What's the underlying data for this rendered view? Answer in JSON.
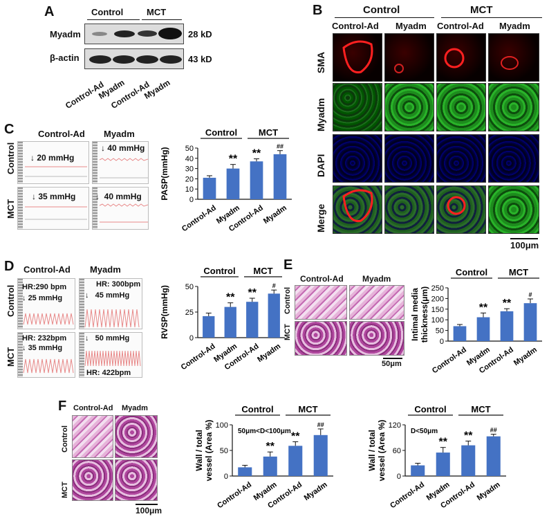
{
  "panels": {
    "A": {
      "letter": "A",
      "groups": [
        "Control",
        "MCT"
      ],
      "rows": [
        "Myadm",
        "β-actin"
      ],
      "sizes": [
        "28 kD",
        "43 kD"
      ],
      "lanes": [
        "Control-Ad",
        "Myadm",
        "Control-Ad",
        "Myadm"
      ]
    },
    "B": {
      "letter": "B",
      "groups": [
        "Control",
        "MCT"
      ],
      "cols": [
        "Control-Ad",
        "Myadm",
        "Control-Ad",
        "Myadm"
      ],
      "rows": [
        "SMA",
        "Myadm",
        "DAPI",
        "Merge"
      ],
      "scale": "100μm"
    },
    "C": {
      "letter": "C",
      "cols": [
        "Control-Ad",
        "Myadm"
      ],
      "rows": [
        "Control",
        "MCT"
      ],
      "traces": [
        "20 mmHg",
        "40 mmHg",
        "35 mmHg",
        "40 mmHg"
      ]
    },
    "D": {
      "letter": "D",
      "cols": [
        "Control-Ad",
        "Myadm"
      ],
      "rows": [
        "Control",
        "MCT"
      ],
      "trace_text": {
        "t1a": "HR:290 bpm",
        "t1b": "25 mmHg",
        "t2a": "HR: 300bpm",
        "t2b": "45 mmHg",
        "t3a": "HR: 232bpm",
        "t3b": "35 mmHg",
        "t4a": "50 mmHg",
        "t4b": "HR: 422bpm"
      }
    },
    "E": {
      "letter": "E",
      "cols": [
        "Control-Ad",
        "Myadm"
      ],
      "rows": [
        "Control",
        "MCT"
      ],
      "scale": "50μm"
    },
    "F": {
      "letter": "F",
      "cols": [
        "Control-Ad",
        "Myadm"
      ],
      "rows": [
        "Control",
        "MCT"
      ],
      "scale": "100μm"
    }
  },
  "colors": {
    "bar": "#4472c4",
    "red_trace": "#e88a8a"
  },
  "chart_data": [
    {
      "id": "C",
      "type": "bar",
      "categories": [
        "Control-Ad",
        "Myadm",
        "Control-Ad",
        "Myadm"
      ],
      "values": [
        21,
        30,
        37,
        44
      ],
      "errors": [
        2,
        4,
        2.5,
        3.5
      ],
      "sig": [
        "",
        "**",
        "**",
        "##"
      ],
      "groups": [
        "Control",
        "MCT"
      ],
      "ylabel": "PASP(mmHg)",
      "ylim": [
        0,
        50
      ],
      "yticks": [
        0,
        10,
        20,
        30,
        40,
        50
      ],
      "note": ""
    },
    {
      "id": "D",
      "type": "bar",
      "categories": [
        "Control-Ad",
        "Myadm",
        "Control-Ad",
        "Myadm"
      ],
      "values": [
        21,
        30,
        35,
        43
      ],
      "errors": [
        3,
        4,
        3.5,
        3.5
      ],
      "sig": [
        "",
        "**",
        "**",
        "#"
      ],
      "groups": [
        "Control",
        "MCT"
      ],
      "ylabel": "RVSP(mmHg)",
      "ylim": [
        0,
        50
      ],
      "yticks": [
        0,
        25,
        50
      ],
      "note": ""
    },
    {
      "id": "E",
      "type": "bar",
      "categories": [
        "Control-Ad",
        "Myadm",
        "Control-Ad",
        "Myadm"
      ],
      "values": [
        70,
        112,
        140,
        178
      ],
      "errors": [
        8,
        20,
        12,
        20
      ],
      "sig": [
        "",
        "**",
        "**",
        "#"
      ],
      "groups": [
        "Control",
        "MCT"
      ],
      "ylabel": "Intimal media thickness(μm)",
      "ylim": [
        0,
        250
      ],
      "yticks": [
        0,
        50,
        100,
        150,
        200,
        250
      ],
      "note": ""
    },
    {
      "id": "F1",
      "type": "bar",
      "categories": [
        "Control-Ad",
        "Myadm",
        "Control-Ad",
        "Myadm"
      ],
      "values": [
        17,
        38,
        59,
        80
      ],
      "errors": [
        4,
        9,
        8,
        12
      ],
      "sig": [
        "",
        "**",
        "**",
        "##"
      ],
      "groups": [
        "Control",
        "MCT"
      ],
      "ylabel": "Wall / total vessel (Area %)",
      "ylim": [
        0,
        100
      ],
      "yticks": [
        0,
        50,
        100
      ],
      "note": "50μm<D<100μm"
    },
    {
      "id": "F2",
      "type": "bar",
      "categories": [
        "Control-Ad",
        "Myadm",
        "Control-Ad",
        "Myadm"
      ],
      "values": [
        25,
        55,
        72,
        93
      ],
      "errors": [
        5,
        12,
        10,
        5
      ],
      "sig": [
        "",
        "**",
        "**",
        "##"
      ],
      "groups": [
        "Control",
        "MCT"
      ],
      "ylabel": "Wall / total vessel (Area %)",
      "ylim": [
        0,
        120
      ],
      "yticks": [
        0,
        60,
        120
      ],
      "note": "D<50μm"
    }
  ]
}
